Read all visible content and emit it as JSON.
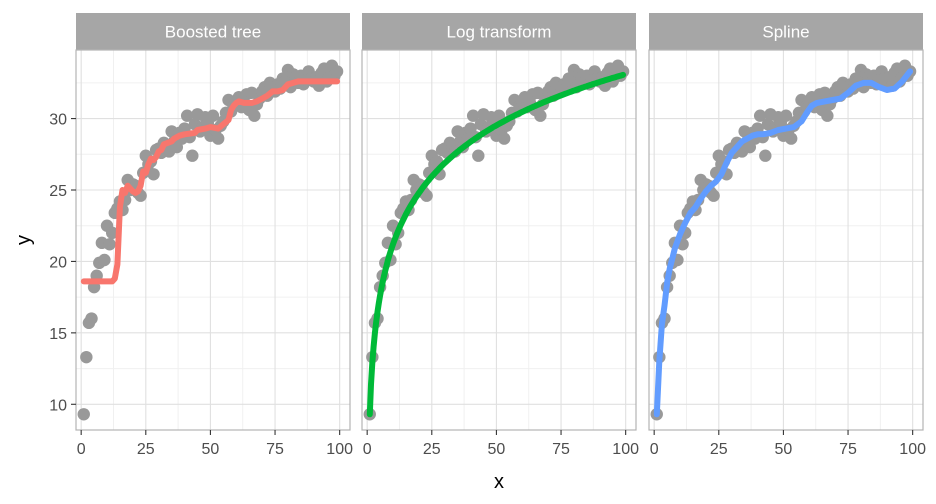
{
  "chart_data": {
    "type": "scatter",
    "xlabel": "x",
    "ylabel": "y",
    "xlim": [
      -2,
      104
    ],
    "ylim": [
      8.2,
      34.8
    ],
    "x_ticks": [
      0,
      25,
      50,
      75,
      100
    ],
    "x_tick_labels": [
      "0",
      "25",
      "50",
      "75",
      "100"
    ],
    "y_ticks": [
      10,
      15,
      20,
      25,
      30
    ],
    "y_tick_labels": [
      "10",
      "15",
      "20",
      "25",
      "30"
    ],
    "grid": true,
    "point_color": "#999999",
    "points": {
      "x": [
        1,
        2,
        3,
        4,
        5,
        6,
        7,
        8,
        9,
        10,
        11,
        12,
        13,
        14,
        15,
        16,
        17,
        18,
        19,
        20,
        21,
        22,
        23,
        24,
        25,
        26,
        27,
        28,
        29,
        30,
        31,
        32,
        33,
        34,
        35,
        36,
        37,
        38,
        39,
        40,
        41,
        42,
        43,
        44,
        45,
        46,
        47,
        48,
        49,
        50,
        51,
        52,
        53,
        54,
        55,
        56,
        57,
        58,
        59,
        60,
        61,
        62,
        63,
        64,
        65,
        66,
        67,
        68,
        69,
        70,
        71,
        72,
        73,
        74,
        75,
        76,
        77,
        78,
        79,
        80,
        81,
        82,
        83,
        84,
        85,
        86,
        87,
        88,
        89,
        90,
        91,
        92,
        93,
        94,
        95,
        96,
        97,
        98,
        99
      ],
      "y": [
        9.3,
        13.3,
        15.7,
        16.0,
        18.2,
        19.0,
        19.9,
        21.3,
        20.1,
        22.5,
        21.2,
        22.0,
        23.4,
        23.7,
        24.2,
        23.6,
        24.3,
        25.7,
        25.0,
        25.4,
        25.3,
        24.8,
        24.6,
        26.2,
        27.4,
        26.8,
        27.0,
        26.1,
        27.8,
        27.9,
        27.6,
        28.3,
        28.0,
        27.7,
        29.1,
        28.4,
        28.0,
        29.0,
        28.6,
        29.3,
        30.2,
        28.7,
        27.4,
        29.6,
        30.3,
        29.1,
        29.4,
        30.1,
        29.7,
        28.8,
        30.2,
        29.2,
        28.6,
        29.5,
        29.8,
        30.4,
        31.3,
        30.5,
        30.9,
        31.2,
        31.5,
        30.8,
        31.1,
        31.7,
        30.6,
        31.8,
        30.2,
        31.0,
        31.4,
        31.9,
        32.2,
        31.6,
        32.5,
        32.0,
        31.9,
        32.4,
        32.1,
        32.8,
        32.6,
        33.4,
        32.2,
        33.1,
        32.9,
        32.5,
        33.0,
        32.4,
        32.7,
        33.3,
        32.8,
        32.6,
        32.9,
        32.3,
        33.2,
        33.5,
        32.6,
        32.9,
        33.7,
        33.0,
        33.3
      ]
    },
    "facets": [
      {
        "title": "Boosted tree",
        "color": "#F8766D",
        "fit": {
          "x": [
            1,
            12,
            13,
            14,
            15,
            16,
            17,
            18,
            19,
            20,
            21,
            22,
            23,
            24,
            25,
            26,
            27,
            28,
            29,
            30,
            31,
            32,
            35,
            36,
            38,
            40,
            44,
            45,
            48,
            50,
            53,
            55,
            57,
            58,
            59,
            60,
            61,
            63,
            66,
            68,
            70,
            72,
            74,
            76,
            78,
            80,
            82,
            84,
            86,
            88,
            90,
            92,
            95,
            99
          ],
          "y": [
            18.6,
            18.6,
            18.8,
            19.8,
            23.8,
            25.0,
            24.8,
            25.3,
            25.1,
            24.9,
            24.8,
            24.9,
            25.3,
            26.3,
            26.2,
            26.8,
            27.2,
            27.1,
            27.3,
            27.7,
            27.8,
            28.2,
            28.4,
            28.6,
            28.8,
            28.9,
            29.0,
            29.2,
            29.3,
            29.4,
            29.3,
            29.6,
            29.9,
            30.6,
            30.9,
            31.1,
            31.2,
            31.1,
            31.1,
            31.2,
            31.4,
            31.6,
            31.9,
            31.9,
            32.0,
            32.4,
            32.5,
            32.6,
            32.6,
            32.6,
            32.6,
            32.6,
            32.6,
            32.6
          ]
        }
      },
      {
        "title": "Log transform",
        "color": "#00BA38",
        "fit": {
          "model": "log",
          "intercept": 9.3,
          "slope": 5.17,
          "x_from": 1,
          "x_to": 99
        }
      },
      {
        "title": "Spline",
        "color": "#619CFF",
        "fit": {
          "x": [
            1,
            2,
            3,
            4,
            5,
            6,
            7,
            8,
            10,
            12,
            14,
            16,
            18,
            20,
            22,
            24,
            26,
            28,
            30,
            32,
            34,
            36,
            38,
            40,
            42,
            45,
            48,
            51,
            54,
            57,
            59,
            61,
            63,
            66,
            69,
            72,
            75,
            78,
            81,
            84,
            87,
            90,
            93,
            96,
            99
          ],
          "y": [
            9.3,
            13.0,
            15.6,
            16.9,
            18.5,
            19.5,
            20.2,
            20.9,
            21.9,
            22.7,
            23.4,
            23.8,
            24.4,
            24.9,
            25.3,
            25.6,
            26.1,
            26.9,
            27.6,
            28.0,
            28.4,
            28.6,
            28.8,
            28.9,
            28.9,
            29.0,
            29.2,
            29.3,
            29.4,
            29.8,
            30.4,
            30.9,
            31.1,
            31.2,
            31.3,
            31.4,
            31.8,
            32.3,
            32.5,
            32.5,
            32.2,
            32.0,
            32.1,
            32.6,
            33.3
          ]
        }
      }
    ]
  }
}
